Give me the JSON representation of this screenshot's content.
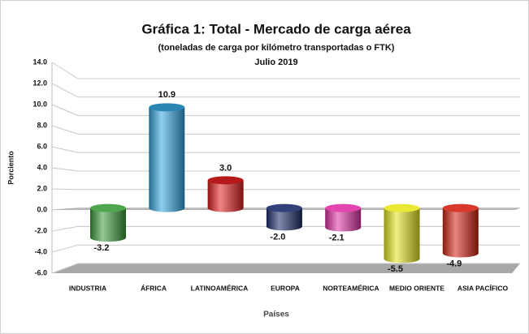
{
  "chart_data": {
    "type": "bar",
    "title": "Gráfica 1: Total - Mercado de carga aérea",
    "subtitle": "(toneladas de carga por kilómetro transportadas o FTK)",
    "date": "Julio 2019",
    "y_label": "Porciento",
    "x_label": "Países",
    "categories": [
      "INDUSTRIA",
      "ÁFRICA",
      "LATINOAMÉRICA",
      "EUROPA",
      "NORTEAMÉRICA",
      "MEDIO ORIENTE",
      "ASIA PACÍFICO"
    ],
    "values": [
      -3.2,
      10.9,
      3.0,
      -2.0,
      -2.1,
      -5.5,
      -4.9
    ],
    "value_labels": [
      "-3.2",
      "10.9",
      "3.0",
      "-2.0",
      "-2.1",
      "-5.5",
      "-4.9"
    ],
    "colors": [
      "#3c9c3a",
      "#36a8e2",
      "#e21f1f",
      "#1c2c6c",
      "#e033a6",
      "#e6e61e",
      "#d42312"
    ],
    "ylim": [
      -6,
      14
    ],
    "yticks": [
      {
        "value": -6,
        "label": "-6.0"
      },
      {
        "value": -4,
        "label": "-4.0"
      },
      {
        "value": -2,
        "label": "-2.0"
      },
      {
        "value": 0,
        "label": "0.0"
      },
      {
        "value": 2,
        "label": "2.0"
      },
      {
        "value": 4,
        "label": "4.0"
      },
      {
        "value": 6,
        "label": "6.0"
      },
      {
        "value": 8,
        "label": "8.0"
      },
      {
        "value": 10,
        "label": "10.0"
      },
      {
        "value": 12,
        "label": "12.0"
      },
      {
        "value": 14,
        "label": "14.0"
      }
    ],
    "grid": true
  }
}
